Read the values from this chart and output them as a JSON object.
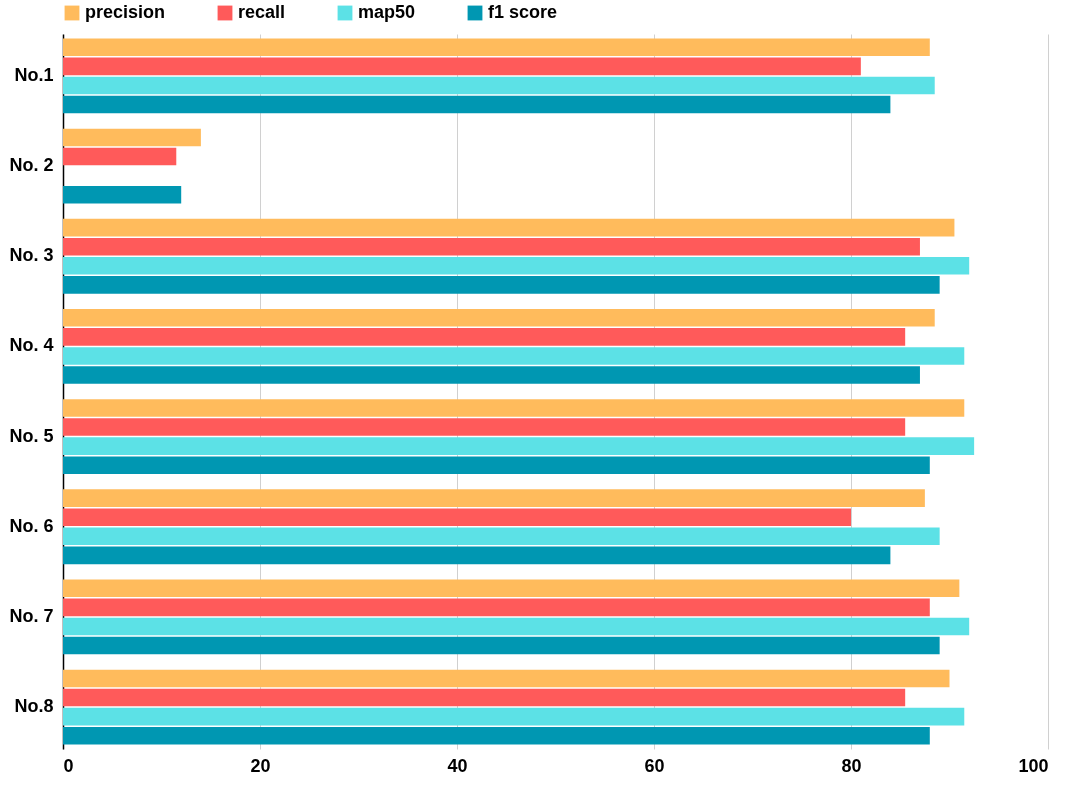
{
  "chart_data": {
    "type": "bar",
    "orientation": "horizontal",
    "categories": [
      "No.1",
      "No. 2",
      "No. 3",
      "No. 4",
      "No. 5",
      "No. 6",
      "No. 7",
      "No.8"
    ],
    "series": [
      {
        "name": "precision",
        "color": "#ffbb5c",
        "values": [
          88,
          14,
          90.5,
          88.5,
          91.5,
          87.5,
          91,
          90
        ]
      },
      {
        "name": "recall",
        "color": "#ff5a5a",
        "values": [
          81,
          11.5,
          87,
          85.5,
          85.5,
          80,
          88,
          85.5
        ]
      },
      {
        "name": "map50",
        "color": "#5ce1e6",
        "values": [
          88.5,
          null,
          92,
          91.5,
          92.5,
          89,
          92,
          91.5
        ]
      },
      {
        "name": "f1 score",
        "color": "#0097b2",
        "values": [
          84,
          12,
          89,
          87,
          88,
          84,
          89,
          88
        ]
      }
    ],
    "xlim": [
      0,
      100
    ],
    "xticks": [
      0,
      20,
      40,
      60,
      80,
      100
    ],
    "grid": "x",
    "legend": "top"
  }
}
